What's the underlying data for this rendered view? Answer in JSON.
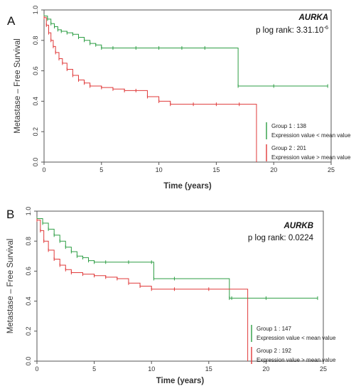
{
  "chart_data": [
    {
      "type": "line",
      "panel_label": "A",
      "gene": "AURKA",
      "pvalue_prefix": "p log rank: 3.31.10",
      "pvalue_exponent": "-6",
      "xlabel": "Time (years)",
      "ylabel": "Metastase – Free Survival",
      "xlim": [
        0,
        25
      ],
      "ylim": [
        0,
        1
      ],
      "xticks": [
        "0",
        "5",
        "10",
        "15",
        "20",
        "25"
      ],
      "yticks": [
        "0.0",
        "0.2",
        "0.4",
        "0.6",
        "0.8",
        "1.0"
      ],
      "legend_position": "bottom-right",
      "series": [
        {
          "name": "Group 1 : 138",
          "description": "Expression value < mean value",
          "color": "#2e9e45",
          "x": [
            0,
            0.3,
            0.6,
            0.9,
            1.2,
            1.5,
            2.0,
            2.5,
            3.0,
            3.5,
            4.0,
            4.5,
            5.0,
            6.0,
            8.0,
            10.0,
            12.0,
            14.0,
            16.9,
            20.0,
            24.7
          ],
          "y": [
            0.96,
            0.94,
            0.91,
            0.89,
            0.87,
            0.86,
            0.85,
            0.84,
            0.82,
            0.8,
            0.78,
            0.77,
            0.75,
            0.75,
            0.75,
            0.75,
            0.75,
            0.75,
            0.5,
            0.5,
            0.5
          ]
        },
        {
          "name": "Group 2 : 201",
          "description": "Expression value > mean value",
          "color": "#e03a3a",
          "x": [
            0,
            0.2,
            0.4,
            0.6,
            0.8,
            1.0,
            1.3,
            1.6,
            2.0,
            2.5,
            3.0,
            3.5,
            4.0,
            5.0,
            6.0,
            7.0,
            8.0,
            9.0,
            10.0,
            11.0,
            13.0,
            15.0,
            17.0,
            18.5
          ],
          "y": [
            0.95,
            0.9,
            0.85,
            0.8,
            0.76,
            0.72,
            0.68,
            0.65,
            0.61,
            0.57,
            0.54,
            0.52,
            0.5,
            0.49,
            0.48,
            0.47,
            0.47,
            0.43,
            0.4,
            0.38,
            0.38,
            0.38,
            0.38,
            0.0
          ]
        }
      ]
    },
    {
      "type": "line",
      "panel_label": "B",
      "gene": "AURKB",
      "pvalue_prefix": "p log rank: 0.0224",
      "pvalue_exponent": "",
      "xlabel": "Time (years)",
      "ylabel": "Metastase – Free Survival",
      "xlim": [
        0,
        25
      ],
      "ylim": [
        0,
        1
      ],
      "xticks": [
        "0",
        "5",
        "10",
        "15",
        "20",
        "25"
      ],
      "yticks": [
        "0.0",
        "0.2",
        "0.4",
        "0.6",
        "0.8",
        "1.0"
      ],
      "legend_position": "bottom-right",
      "series": [
        {
          "name": "Group 1 : 147",
          "description": "Expression value < mean value",
          "color": "#2e9e45",
          "x": [
            0,
            0.5,
            1.0,
            1.5,
            2.0,
            2.5,
            3.0,
            3.5,
            4.0,
            4.5,
            5.0,
            6.0,
            8.0,
            10.0,
            10.2,
            12.0,
            16.8,
            17.0,
            20.0,
            24.5
          ],
          "y": [
            0.95,
            0.92,
            0.88,
            0.84,
            0.8,
            0.76,
            0.73,
            0.7,
            0.69,
            0.67,
            0.66,
            0.66,
            0.66,
            0.66,
            0.55,
            0.55,
            0.42,
            0.42,
            0.42,
            0.42
          ]
        },
        {
          "name": "Group 2 : 192",
          "description": "Expression value > mean value",
          "color": "#e03a3a",
          "x": [
            0,
            0.3,
            0.6,
            1.0,
            1.5,
            2.0,
            2.5,
            3.0,
            4.0,
            5.0,
            6.0,
            7.0,
            8.0,
            9.0,
            10.0,
            12.0,
            15.0,
            18.4
          ],
          "y": [
            0.94,
            0.87,
            0.8,
            0.74,
            0.68,
            0.64,
            0.61,
            0.59,
            0.58,
            0.57,
            0.56,
            0.55,
            0.52,
            0.5,
            0.48,
            0.48,
            0.48,
            0.0
          ]
        }
      ]
    }
  ]
}
